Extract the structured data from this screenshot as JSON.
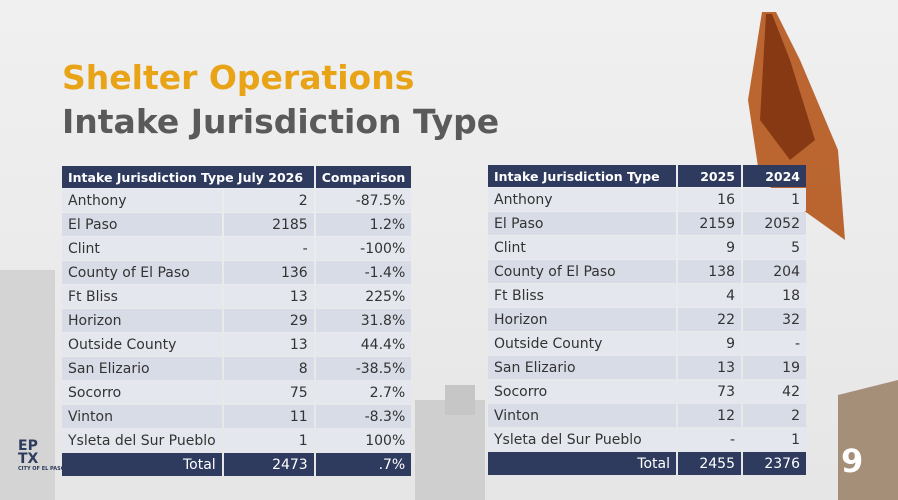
{
  "title": "Shelter Operations",
  "subtitle": "Intake Jurisdiction Type",
  "left_table": {
    "headers": [
      "Intake Jurisdiction Type July 2026",
      "Comparison"
    ],
    "rows": [
      [
        "Anthony",
        "2",
        "-87.5%"
      ],
      [
        "El Paso",
        "2185",
        "1.2%"
      ],
      [
        "Clint",
        "-",
        "-100%"
      ],
      [
        "County of El Paso",
        "136",
        "-1.4%"
      ],
      [
        "Ft Bliss",
        "13",
        "225%"
      ],
      [
        "Horizon",
        "29",
        "31.8%"
      ],
      [
        "Outside County",
        "13",
        "44.4%"
      ],
      [
        "San Elizario",
        "8",
        "-38.5%"
      ],
      [
        "Socorro",
        "75",
        "2.7%"
      ],
      [
        "Vinton",
        "11",
        "-8.3%"
      ],
      [
        "Ysleta del Sur Pueblo",
        "1",
        "100%"
      ]
    ],
    "total": [
      "Total",
      "2473",
      ".7%"
    ]
  },
  "right_table": {
    "headers": [
      "Intake Jurisdiction Type",
      "2025",
      "2024"
    ],
    "rows": [
      [
        "Anthony",
        "16",
        "1"
      ],
      [
        "El Paso",
        "2159",
        "2052"
      ],
      [
        "Clint",
        "9",
        "5"
      ],
      [
        "County of El Paso",
        "138",
        "204"
      ],
      [
        "Ft Bliss",
        "4",
        "18"
      ],
      [
        "Horizon",
        "22",
        "32"
      ],
      [
        "Outside County",
        "9",
        "-"
      ],
      [
        "San Elizario",
        "13",
        "19"
      ],
      [
        "Socorro",
        "73",
        "42"
      ],
      [
        "Vinton",
        "12",
        "2"
      ],
      [
        "Ysleta del Sur Pueblo",
        "-",
        "1"
      ]
    ],
    "total": [
      "Total",
      "2455",
      "2376"
    ]
  },
  "logo": [
    "EP",
    "TX",
    "CITY OF EL PASO"
  ],
  "page_number": "9"
}
